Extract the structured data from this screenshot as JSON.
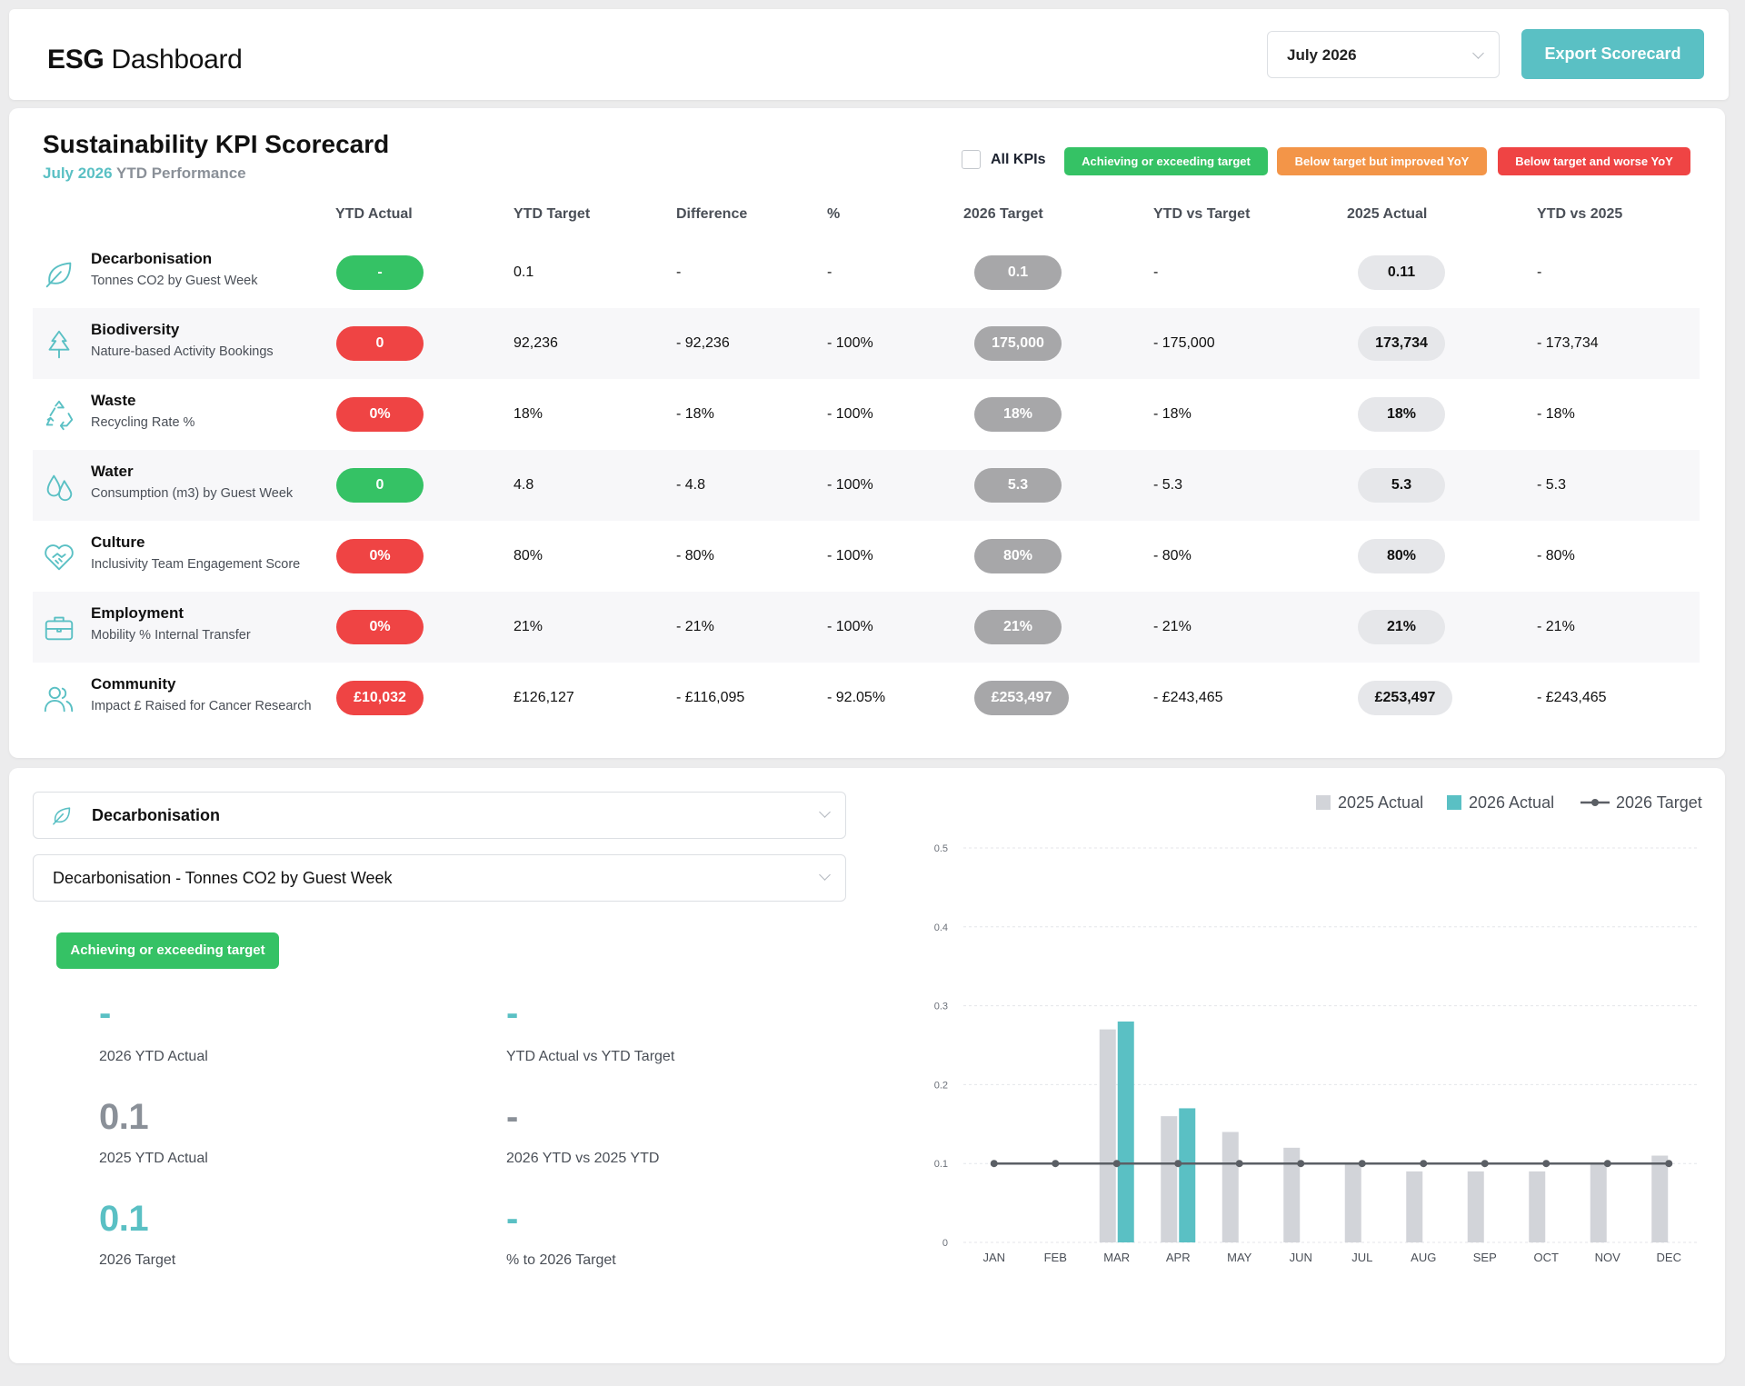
{
  "header": {
    "title_bold": "ESG",
    "title_rest": " Dashboard",
    "month": "July 2026",
    "export_label": "Export Scorecard"
  },
  "scorecard": {
    "title": "Sustainability KPI Scorecard",
    "subtitle_accent": "July 2026",
    "subtitle_rest": " YTD Performance",
    "all_kpis_label": "All KPIs",
    "legend": [
      {
        "label": "Achieving or exceeding target",
        "color": "#35c265"
      },
      {
        "label": "Below target but improved YoY",
        "color": "#f39548"
      },
      {
        "label": "Below target and worse YoY",
        "color": "#ef4444"
      }
    ],
    "columns": [
      "YTD Actual",
      "YTD Target",
      "Difference",
      "%",
      "2026 Target",
      "YTD vs Target",
      "2025 Actual",
      "YTD vs 2025"
    ],
    "rows": [
      {
        "name": "Decarbonisation",
        "sub": "Tonnes CO2 by Guest Week",
        "icon": "leaf-icon",
        "status": "green",
        "ytd_actual": "-",
        "ytd_target": "0.1",
        "difference": "-",
        "pct": "-",
        "target_2026": "0.1",
        "ytd_vs_target": "-",
        "actual_2025": "0.11",
        "ytd_vs_2025": "-"
      },
      {
        "name": "Biodiversity",
        "sub": "Nature-based Activity Bookings",
        "icon": "tree-icon",
        "status": "red",
        "ytd_actual": "0",
        "ytd_target": "92,236",
        "difference": "- 92,236",
        "pct": "- 100%",
        "target_2026": "175,000",
        "ytd_vs_target": "- 175,000",
        "actual_2025": "173,734",
        "ytd_vs_2025": "- 173,734"
      },
      {
        "name": "Waste",
        "sub": "Recycling Rate %",
        "icon": "recycle-icon",
        "status": "red",
        "ytd_actual": "0%",
        "ytd_target": "18%",
        "difference": "- 18%",
        "pct": "- 100%",
        "target_2026": "18%",
        "ytd_vs_target": "- 18%",
        "actual_2025": "18%",
        "ytd_vs_2025": "- 18%"
      },
      {
        "name": "Water",
        "sub": "Consumption (m3) by Guest Week",
        "icon": "water-drops-icon",
        "status": "green",
        "ytd_actual": "0",
        "ytd_target": "4.8",
        "difference": "- 4.8",
        "pct": "- 100%",
        "target_2026": "5.3",
        "ytd_vs_target": "- 5.3",
        "actual_2025": "5.3",
        "ytd_vs_2025": "- 5.3"
      },
      {
        "name": "Culture",
        "sub": "Inclusivity Team Engagement Score",
        "icon": "heart-handshake-icon",
        "status": "red",
        "ytd_actual": "0%",
        "ytd_target": "80%",
        "difference": "- 80%",
        "pct": "- 100%",
        "target_2026": "80%",
        "ytd_vs_target": "- 80%",
        "actual_2025": "80%",
        "ytd_vs_2025": "- 80%"
      },
      {
        "name": "Employment",
        "sub": "Mobility % Internal Transfer",
        "icon": "briefcase-icon",
        "status": "red",
        "ytd_actual": "0%",
        "ytd_target": "21%",
        "difference": "- 21%",
        "pct": "- 100%",
        "target_2026": "21%",
        "ytd_vs_target": "- 21%",
        "actual_2025": "21%",
        "ytd_vs_2025": "- 21%"
      },
      {
        "name": "Community",
        "sub": "Impact £ Raised for Cancer Research",
        "icon": "people-icon",
        "status": "red",
        "ytd_actual": "£10,032",
        "ytd_target": "£126,127",
        "difference": "- £116,095",
        "pct": "- 92.05%",
        "target_2026": "£253,497",
        "ytd_vs_target": "- £243,465",
        "actual_2025": "£253,497",
        "ytd_vs_2025": "- £243,465"
      }
    ]
  },
  "detail": {
    "category": "Decarbonisation",
    "metric": "Decarbonisation - Tonnes CO2 by Guest Week",
    "status_label": "Achieving or exceeding target",
    "metrics": [
      {
        "value": "-",
        "label": "2026 YTD Actual"
      },
      {
        "value": "-",
        "label": "YTD Actual vs YTD Target"
      },
      {
        "value": "0.1",
        "label": "2025 YTD Actual"
      },
      {
        "value": "-",
        "label": "2026 YTD vs 2025 YTD"
      },
      {
        "value": "0.1",
        "label": "2026 Target"
      },
      {
        "value": "-",
        "label": "% to 2026 Target"
      }
    ]
  },
  "chart_data": {
    "type": "bar",
    "categories": [
      "JAN",
      "FEB",
      "MAR",
      "APR",
      "MAY",
      "JUN",
      "JUL",
      "AUG",
      "SEP",
      "OCT",
      "NOV",
      "DEC"
    ],
    "series": [
      {
        "name": "2025 Actual",
        "type": "bar",
        "color": "#d2d4d9",
        "values": [
          null,
          null,
          0.27,
          0.16,
          0.14,
          0.12,
          0.1,
          0.09,
          0.09,
          0.09,
          0.1,
          0.11
        ]
      },
      {
        "name": "2026 Actual",
        "type": "bar",
        "color": "#5ac0c4",
        "values": [
          null,
          null,
          0.28,
          0.17,
          null,
          null,
          null,
          null,
          null,
          null,
          null,
          null
        ]
      },
      {
        "name": "2026 Target",
        "type": "line",
        "color": "#5b5f65",
        "values": [
          0.1,
          0.1,
          0.1,
          0.1,
          0.1,
          0.1,
          0.1,
          0.1,
          0.1,
          0.1,
          0.1,
          0.1
        ]
      }
    ],
    "y_ticks": [
      "0",
      "0.1",
      "0.2",
      "0.3",
      "0.4",
      "0.5"
    ],
    "ylim": [
      0,
      0.5
    ],
    "grid": true,
    "legend_position": "top-right"
  },
  "colors": {
    "accent": "#5ac0c4",
    "green": "#35c265",
    "orange": "#f39548",
    "red": "#ef4444"
  }
}
